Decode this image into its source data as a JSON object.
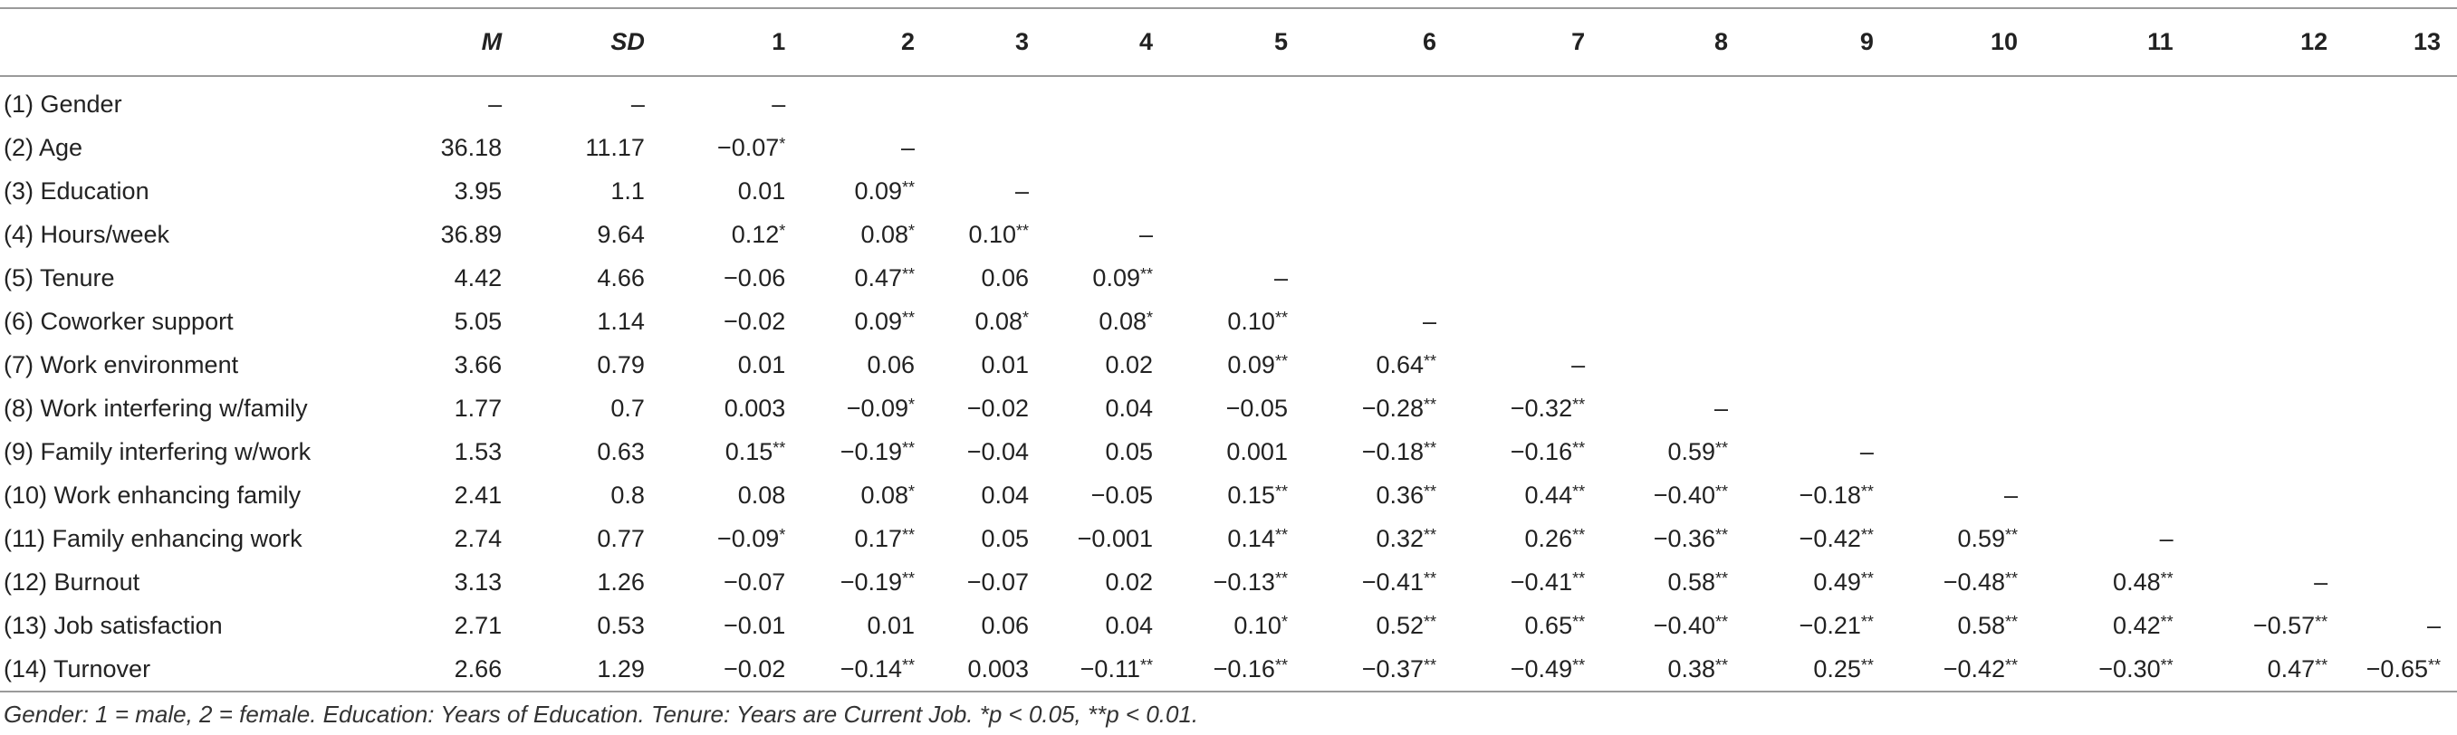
{
  "table": {
    "headers": [
      "",
      "M",
      "SD",
      "1",
      "2",
      "3",
      "4",
      "5",
      "6",
      "7",
      "8",
      "9",
      "10",
      "11",
      "12",
      "13"
    ],
    "rows": [
      {
        "label": "(1) Gender",
        "cells": [
          "–",
          "–",
          "–",
          "",
          "",
          "",
          "",
          "",
          "",
          "",
          "",
          "",
          "",
          "",
          ""
        ]
      },
      {
        "label": "(2) Age",
        "cells": [
          "36.18",
          "11.17",
          "−0.07*",
          "–",
          "",
          "",
          "",
          "",
          "",
          "",
          "",
          "",
          "",
          "",
          ""
        ]
      },
      {
        "label": "(3) Education",
        "cells": [
          "3.95",
          "1.1",
          "0.01",
          "0.09**",
          "–",
          "",
          "",
          "",
          "",
          "",
          "",
          "",
          "",
          "",
          ""
        ]
      },
      {
        "label": "(4) Hours/week",
        "cells": [
          "36.89",
          "9.64",
          "0.12*",
          "0.08*",
          "0.10**",
          "–",
          "",
          "",
          "",
          "",
          "",
          "",
          "",
          "",
          ""
        ]
      },
      {
        "label": "(5) Tenure",
        "cells": [
          "4.42",
          "4.66",
          "−0.06",
          "0.47**",
          "0.06",
          "0.09**",
          "–",
          "",
          "",
          "",
          "",
          "",
          "",
          "",
          ""
        ]
      },
      {
        "label": "(6) Coworker support",
        "cells": [
          "5.05",
          "1.14",
          "−0.02",
          "0.09**",
          "0.08*",
          "0.08*",
          "0.10**",
          "–",
          "",
          "",
          "",
          "",
          "",
          "",
          ""
        ]
      },
      {
        "label": "(7) Work environment",
        "cells": [
          "3.66",
          "0.79",
          "0.01",
          "0.06",
          "0.01",
          "0.02",
          "0.09**",
          "0.64**",
          "–",
          "",
          "",
          "",
          "",
          "",
          ""
        ]
      },
      {
        "label": "(8) Work interfering w/family",
        "cells": [
          "1.77",
          "0.7",
          "0.003",
          "−0.09*",
          "−0.02",
          "0.04",
          "−0.05",
          "−0.28**",
          "−0.32**",
          "–",
          "",
          "",
          "",
          "",
          ""
        ]
      },
      {
        "label": "(9) Family interfering w/work",
        "cells": [
          "1.53",
          "0.63",
          "0.15**",
          "−0.19**",
          "−0.04",
          "0.05",
          "0.001",
          "−0.18**",
          "−0.16**",
          "0.59**",
          "–",
          "",
          "",
          "",
          ""
        ]
      },
      {
        "label": "(10) Work enhancing family",
        "cells": [
          "2.41",
          "0.8",
          "0.08",
          "0.08*",
          "0.04",
          "−0.05",
          "0.15**",
          "0.36**",
          "0.44**",
          "−0.40**",
          "−0.18**",
          "–",
          "",
          "",
          ""
        ]
      },
      {
        "label": "(11) Family enhancing work",
        "cells": [
          "2.74",
          "0.77",
          "−0.09*",
          "0.17**",
          "0.05",
          "−0.001",
          "0.14**",
          "0.32**",
          "0.26**",
          "−0.36**",
          "−0.42**",
          "0.59**",
          "–",
          "",
          ""
        ]
      },
      {
        "label": "(12) Burnout",
        "cells": [
          "3.13",
          "1.26",
          "−0.07",
          "−0.19**",
          "−0.07",
          "0.02",
          "−0.13**",
          "−0.41**",
          "−0.41**",
          "0.58**",
          "0.49**",
          "−0.48**",
          "0.48**",
          "–",
          ""
        ]
      },
      {
        "label": "(13) Job satisfaction",
        "cells": [
          "2.71",
          "0.53",
          "−0.01",
          "0.01",
          "0.06",
          "0.04",
          "0.10*",
          "0.52**",
          "0.65**",
          "−0.40**",
          "−0.21**",
          "0.58**",
          "0.42**",
          "−0.57**",
          "–"
        ]
      },
      {
        "label": "(14) Turnover",
        "cells": [
          "2.66",
          "1.29",
          "−0.02",
          "−0.14**",
          "0.003",
          "−0.11**",
          "−0.16**",
          "−0.37**",
          "−0.49**",
          "0.38**",
          "0.25**",
          "−0.42**",
          "−0.30**",
          "0.47**",
          "−0.65**"
        ]
      }
    ]
  },
  "note": "Gender: 1 = male, 2 = female. Education: Years of Education. Tenure: Years are Current Job. *p < 0.05, **p < 0.01."
}
